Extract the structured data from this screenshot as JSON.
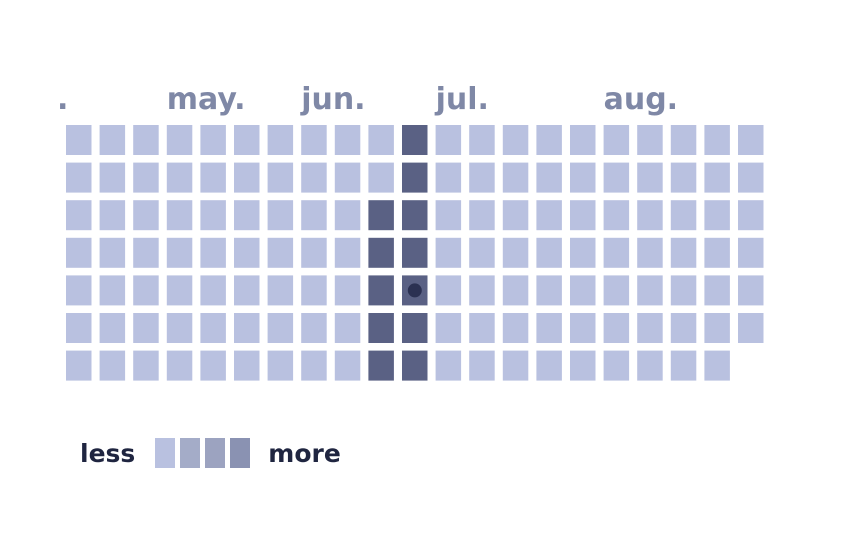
{
  "chart_data": {
    "type": "heatmap",
    "month_labels": [
      {
        "label": ".",
        "week": 0
      },
      {
        "label": "may.",
        "week": 3
      },
      {
        "label": "jun.",
        "week": 7
      },
      {
        "label": "jul.",
        "week": 11
      },
      {
        "label": "aug.",
        "week": 16
      }
    ],
    "weeks": 21,
    "days_per_week": 7,
    "last_week_days": 6,
    "dark_cells": [
      {
        "week": 9,
        "day": 2
      },
      {
        "week": 9,
        "day": 3
      },
      {
        "week": 9,
        "day": 4
      },
      {
        "week": 9,
        "day": 5
      },
      {
        "week": 9,
        "day": 6
      },
      {
        "week": 10,
        "day": 0
      },
      {
        "week": 10,
        "day": 1
      },
      {
        "week": 10,
        "day": 2
      },
      {
        "week": 10,
        "day": 3
      },
      {
        "week": 10,
        "day": 4
      },
      {
        "week": 10,
        "day": 5
      },
      {
        "week": 10,
        "day": 6
      }
    ],
    "highlighted_cell": {
      "week": 10,
      "day": 4
    },
    "levels": [
      "#b9c1e0",
      "#a4acc8",
      "#9ca3c0",
      "#8a92b2"
    ],
    "base_color": "#b9c1e0",
    "dark_color": "#5a6184",
    "marker_color": "#2b3152"
  },
  "legend": {
    "less_label": "less",
    "more_label": "more"
  }
}
